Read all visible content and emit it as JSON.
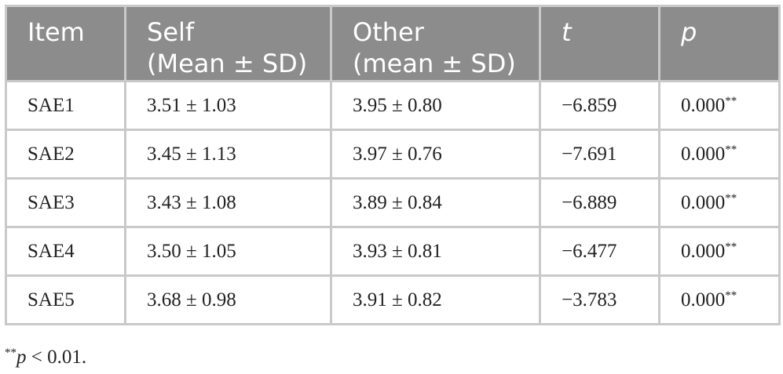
{
  "table": {
    "header": [
      [
        "Item"
      ],
      [
        "Self",
        "(Mean ± SD)"
      ],
      [
        "Other",
        "(mean ± SD)"
      ],
      [
        "t"
      ],
      [
        "p"
      ]
    ],
    "rows": [
      [
        "SAE1",
        "3.51 ± 1.03",
        "3.95 ± 0.80",
        "−6.859",
        {
          "value": "0.000",
          "sup": "**"
        }
      ],
      [
        "SAE2",
        "3.45 ± 1.13",
        "3.97 ± 0.76",
        "−7.691",
        {
          "value": "0.000",
          "sup": "**"
        }
      ],
      [
        "SAE3",
        "3.43 ± 1.08",
        "3.89 ± 0.84",
        "−6.889",
        {
          "value": "0.000",
          "sup": "**"
        }
      ],
      [
        "SAE4",
        "3.50 ± 1.05",
        "3.93 ± 0.81",
        "−6.477",
        {
          "value": "0.000",
          "sup": "**"
        }
      ],
      [
        "SAE5",
        "3.68 ± 0.98",
        "3.91 ± 0.82",
        "−3.783",
        {
          "value": "0.000",
          "sup": "**"
        }
      ]
    ]
  },
  "footnote": {
    "sup": "**",
    "variable": "p",
    "text": " < 0.01."
  }
}
